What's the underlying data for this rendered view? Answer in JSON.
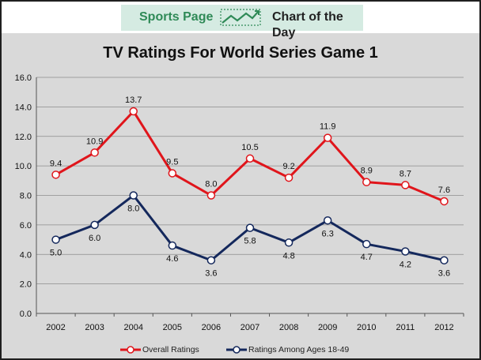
{
  "banner": {
    "left_text": "Sports Page",
    "right_text": "Chart of the Day",
    "icon": "trend-chart-icon",
    "colors": {
      "background": "#d5ebe2",
      "left_text": "#2f8a57",
      "right_text": "#222222"
    }
  },
  "chart_data": {
    "type": "line",
    "title": "TV Ratings For World Series Game 1",
    "xlabel": "",
    "ylabel": "",
    "categories": [
      "2002",
      "2003",
      "2004",
      "2005",
      "2006",
      "2007",
      "2008",
      "2009",
      "2010",
      "2011",
      "2012"
    ],
    "ylim": [
      0,
      16
    ],
    "yticks": [
      "0.0",
      "2.0",
      "4.0",
      "6.0",
      "8.0",
      "10.0",
      "12.0",
      "14.0",
      "16.0"
    ],
    "grid": true,
    "legend_position": "bottom",
    "series": [
      {
        "name": "Overall Ratings",
        "color": "#e0151b",
        "values": [
          9.4,
          10.9,
          13.7,
          9.5,
          8.0,
          10.5,
          9.2,
          11.9,
          8.9,
          8.7,
          7.6
        ],
        "labels": [
          "9.4",
          "10.9",
          "13.7",
          "9.5",
          "8.0",
          "10.5",
          "9.2",
          "11.9",
          "8.9",
          "8.7",
          "7.6"
        ]
      },
      {
        "name": "Ratings Among Ages 18-49",
        "color": "#14285c",
        "values": [
          5.0,
          6.0,
          8.0,
          4.6,
          3.6,
          5.8,
          4.8,
          6.3,
          4.7,
          4.2,
          3.6
        ],
        "labels": [
          "5.0",
          "6.0",
          "8.0",
          "4.6",
          "3.6",
          "5.8",
          "4.8",
          "6.3",
          "4.7",
          "4.2",
          "3.6"
        ]
      }
    ]
  }
}
